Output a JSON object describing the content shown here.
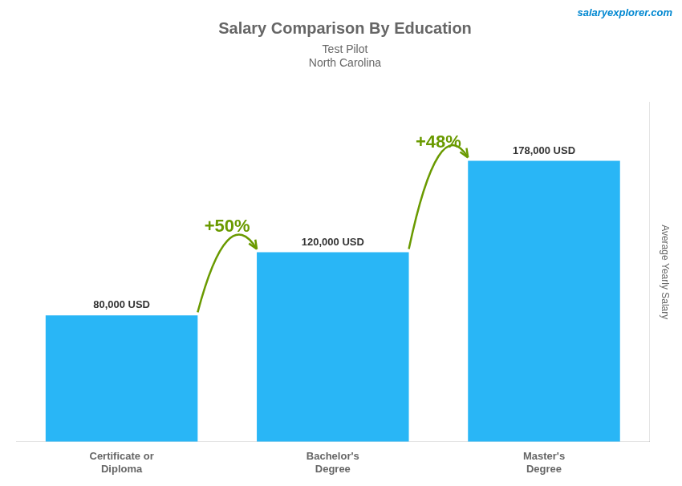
{
  "chart_data": {
    "type": "bar",
    "title": "Salary Comparison By Education",
    "subtitle": [
      "Test Pilot",
      "North Carolina"
    ],
    "ylabel": "Average Yearly Salary",
    "categories": [
      "Certificate or\nDiploma",
      "Bachelor's\nDegree",
      "Master's\nDegree"
    ],
    "values": [
      80000,
      120000,
      178000
    ],
    "value_labels": [
      "80,000 USD",
      "120,000 USD",
      "178,000 USD"
    ],
    "data_labels": true,
    "color": "#29b6f6",
    "ylim": [
      0,
      215000
    ],
    "tick_labels": "x",
    "grid": false,
    "annotations": [
      {
        "text": "+50%",
        "from": "Certificate or\nDiploma",
        "to": "Bachelor's\nDegree"
      },
      {
        "text": "+48%",
        "from": "Bachelor's\nDegree",
        "to": "Master's\nDegree"
      },
      {
        "text": "salaryexplorer.com"
      }
    ]
  }
}
